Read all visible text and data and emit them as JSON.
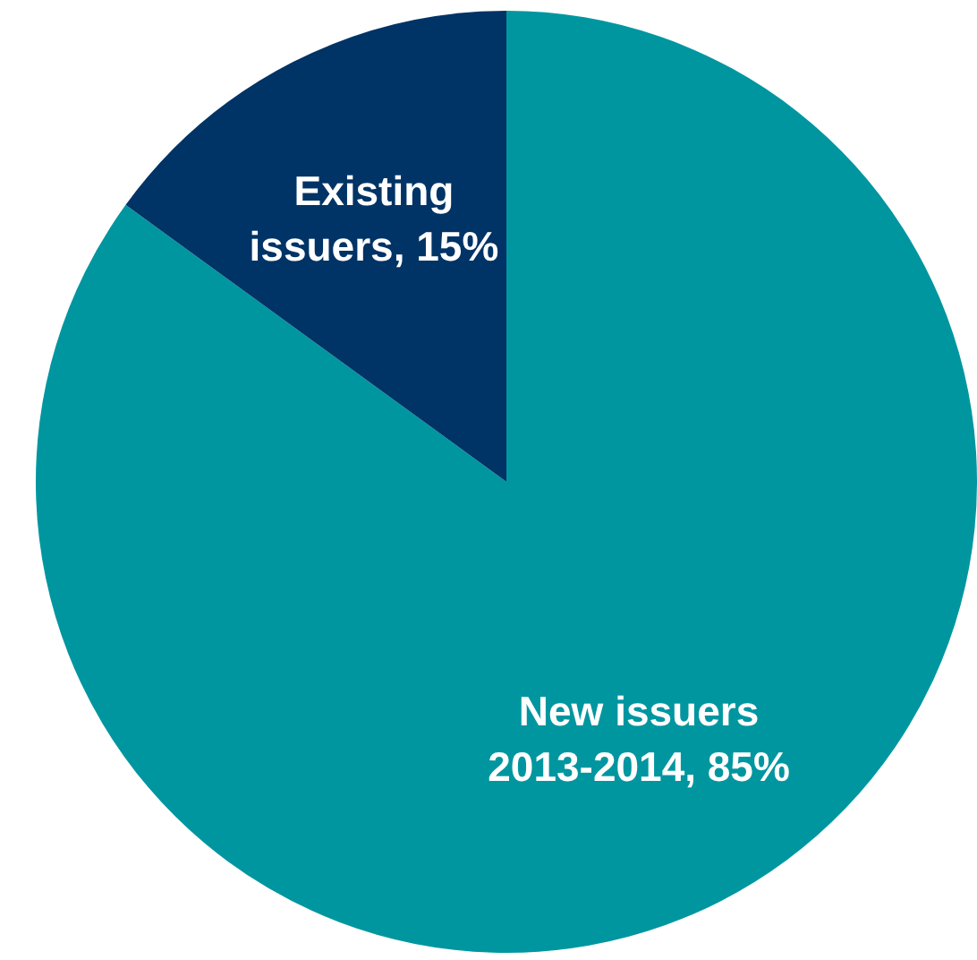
{
  "chart_data": {
    "type": "pie",
    "categories": [
      "New issuers 2013-2014",
      "Existing issuers"
    ],
    "values": [
      85,
      15
    ],
    "colors": [
      "#0096a0",
      "#003366"
    ],
    "value_labels": [
      "85%",
      "15%"
    ],
    "legend": false
  }
}
